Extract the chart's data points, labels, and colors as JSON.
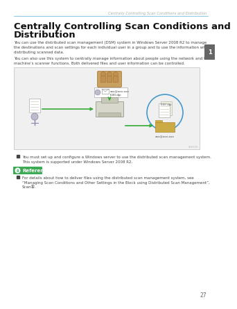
{
  "bg_color": "#ffffff",
  "header_line_color": "#5aaedc",
  "header_text": "Centrally Controlling Scan Conditions and Distribution",
  "header_text_color": "#aaaaaa",
  "header_fontsize": 3.8,
  "title_line1": "Centrally Controlling Scan Conditions and",
  "title_line2": "Distribution",
  "title_fontsize": 9.5,
  "title_color": "#111111",
  "body_text1": "You can use the distributed scan management (DSM) system in Windows Server 2008 R2 to manage\nthe destinations and scan settings for each individual user in a group and to use the information when\ndistributing scanned data.",
  "body_text2": "You can also use this system to centrally manage information about people using the network and the\nmachine’s scanner functions. Both delivered files and user information can be controlled.",
  "body_fontsize": 4.0,
  "body_color": "#444444",
  "tab_color": "#666666",
  "tab_number": "1",
  "diagram_box_facecolor": "#f0f0f0",
  "diagram_box_edgecolor": "#cccccc",
  "bullet_text1": "You must set up and configure a Windows server to use the distributed scan management system.\nThis system is supported under Windows Server 2008 R2.",
  "reference_bg": "#3daa55",
  "reference_text": "Reference",
  "bullet_text2": "For details about how to deliver files using the distributed scan management system, see\n“Managing Scan Conditions and Other Settings in the Block using Distributed Scan Management”,\nScanⓇ.",
  "bullet_fontsize": 4.0,
  "page_number": "27",
  "arrow_color": "#33aa33",
  "person_color": "#888899",
  "server_color": "#c8a870",
  "doc_color": "#f5f5f0",
  "doc_stripe_color": "#ccccbb",
  "folder_color": "#ccaa44",
  "circle_color": "#4499cc",
  "printer_color": "#d8d8cc"
}
